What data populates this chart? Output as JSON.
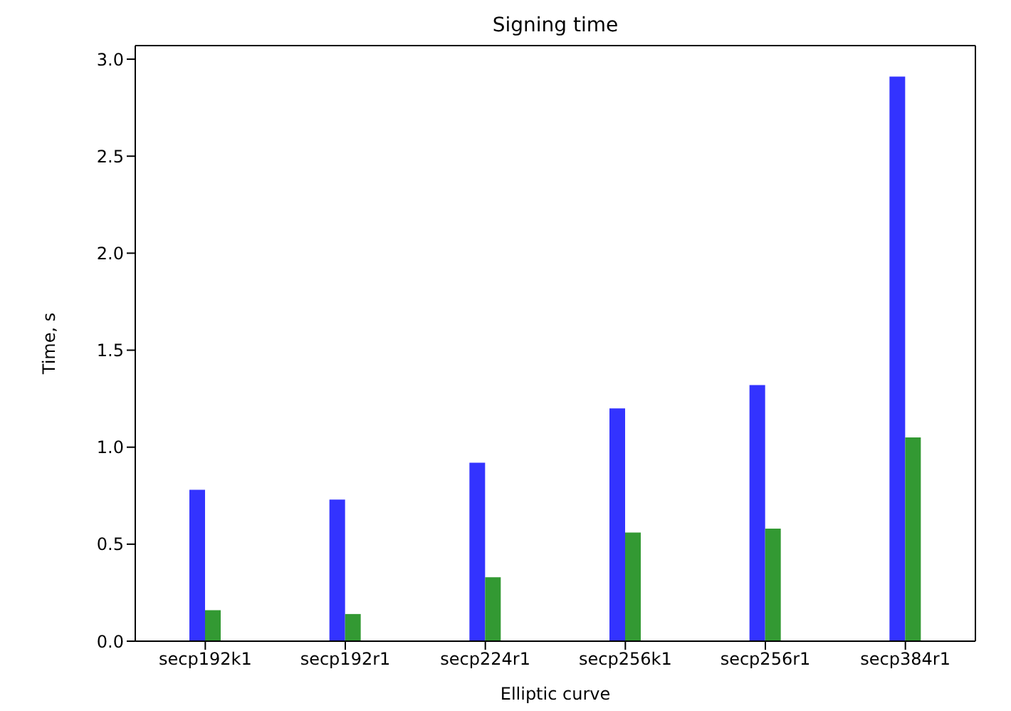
{
  "chart_data": {
    "type": "bar",
    "title": "Signing time",
    "xlabel": "Elliptic curve",
    "ylabel": "Time, s",
    "categories": [
      "secp192k1",
      "secp192r1",
      "secp224r1",
      "secp256k1",
      "secp256r1",
      "secp384r1"
    ],
    "series": [
      {
        "color": "#3333ff",
        "values": [
          0.78,
          0.73,
          0.92,
          1.2,
          1.32,
          2.91
        ]
      },
      {
        "color": "#339933",
        "values": [
          0.16,
          0.14,
          0.33,
          0.56,
          0.58,
          1.05
        ]
      }
    ],
    "ylim": [
      0,
      3.07
    ],
    "yticks": [
      {
        "value": 0,
        "label": "0.0"
      },
      {
        "value": 0.5,
        "label": "0.5"
      },
      {
        "value": 1,
        "label": "1.0"
      },
      {
        "value": 1.5,
        "label": "1.5"
      },
      {
        "value": 2,
        "label": "2.0"
      },
      {
        "value": 2.5,
        "label": "2.5"
      },
      {
        "value": 3,
        "label": "3.0"
      }
    ],
    "grid": false,
    "legend": false
  }
}
